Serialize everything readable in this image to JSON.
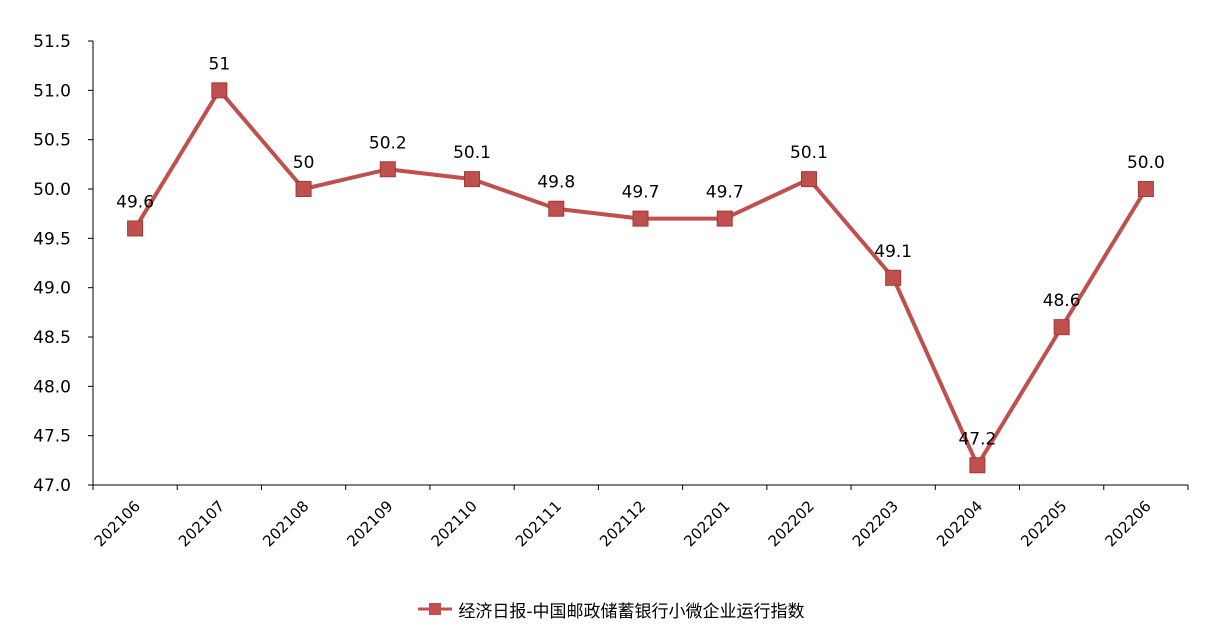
{
  "chart_data": {
    "type": "line",
    "categories": [
      "202106",
      "202107",
      "202108",
      "202109",
      "202110",
      "202111",
      "202112",
      "202201",
      "202202",
      "202203",
      "202204",
      "202205",
      "202206"
    ],
    "series": [
      {
        "name": "经济日报-中国邮政储蓄银行小微企业运行指数",
        "values": [
          49.6,
          51,
          50,
          50.2,
          50.1,
          49.8,
          49.7,
          49.7,
          50.1,
          49.1,
          47.2,
          48.6,
          50.0
        ],
        "data_labels": [
          "49.6",
          "51",
          "50",
          "50.2",
          "50.1",
          "49.8",
          "49.7",
          "49.7",
          "50.1",
          "49.1",
          "47.2",
          "48.6",
          "50.0"
        ],
        "color": "#c0504d",
        "marker": "square"
      }
    ],
    "y_ticks": [
      "47.0",
      "47.5",
      "48.0",
      "48.5",
      "49.0",
      "49.5",
      "50.0",
      "50.5",
      "51.0",
      "51.5"
    ],
    "ylim": [
      47.0,
      51.5
    ],
    "grid": false,
    "legend_position": "bottom-center"
  },
  "legend": {
    "label": "经济日报-中国邮政储蓄银行小微企业运行指数",
    "color": "#c0504d"
  }
}
